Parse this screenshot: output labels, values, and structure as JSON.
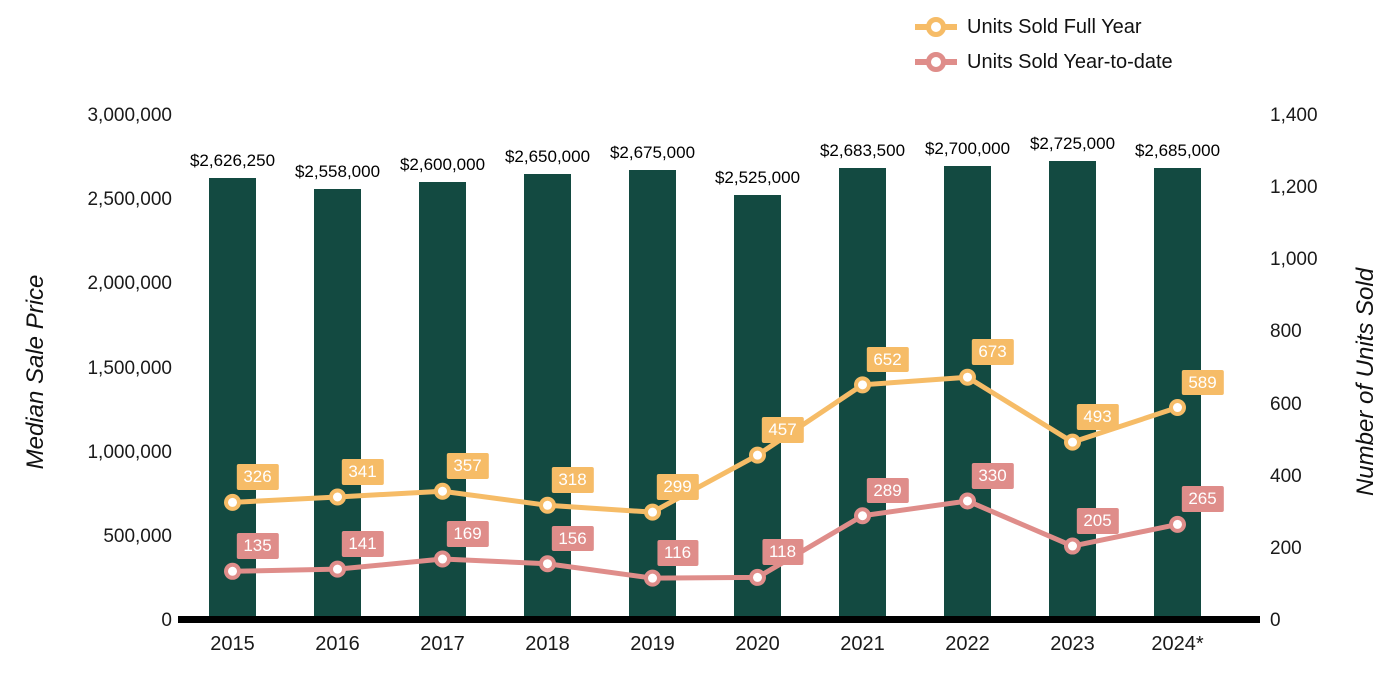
{
  "chart_data": {
    "type": "bar+line",
    "categories": [
      "2015",
      "2016",
      "2017",
      "2018",
      "2019",
      "2020",
      "2021",
      "2022",
      "2023",
      "2024*"
    ],
    "bar_series": {
      "name": "Median Sale Price",
      "color": "#134a41",
      "values": [
        2626250,
        2558000,
        2600000,
        2650000,
        2675000,
        2525000,
        2683500,
        2700000,
        2725000,
        2685000
      ],
      "labels": [
        "$2,626,250",
        "$2,558,000",
        "$2,600,000",
        "$2,650,000",
        "$2,675,000",
        "$2,525,000",
        "$2,683,500",
        "$2,700,000",
        "$2,725,000",
        "$2,685,000"
      ]
    },
    "line_series": [
      {
        "name": "Units Sold Full Year",
        "color": "#f6bc67",
        "values": [
          326,
          341,
          357,
          318,
          299,
          457,
          652,
          673,
          493,
          589
        ]
      },
      {
        "name": "Units Sold Year-to-date",
        "color": "#df8d8a",
        "values": [
          135,
          141,
          169,
          156,
          116,
          118,
          289,
          330,
          205,
          265
        ]
      }
    ],
    "left_axis": {
      "label": "Median Sale Price",
      "min": 0,
      "max": 3000000,
      "tick_values": [
        0,
        500000,
        1000000,
        1500000,
        2000000,
        2500000,
        3000000
      ],
      "tick_labels": [
        "0",
        "500,000",
        "1,000,000",
        "1,500,000",
        "2,000,000",
        "2,500,000",
        "3,000,000"
      ]
    },
    "right_axis": {
      "label": "Number of Units Sold",
      "min": 0,
      "max": 1400,
      "tick_values": [
        0,
        200,
        400,
        600,
        800,
        1000,
        1200,
        1400
      ],
      "tick_labels": [
        "0",
        "200",
        "400",
        "600",
        "800",
        "1,000",
        "1,200",
        "1,400"
      ]
    },
    "legend_position": "top-right",
    "grid": false
  }
}
